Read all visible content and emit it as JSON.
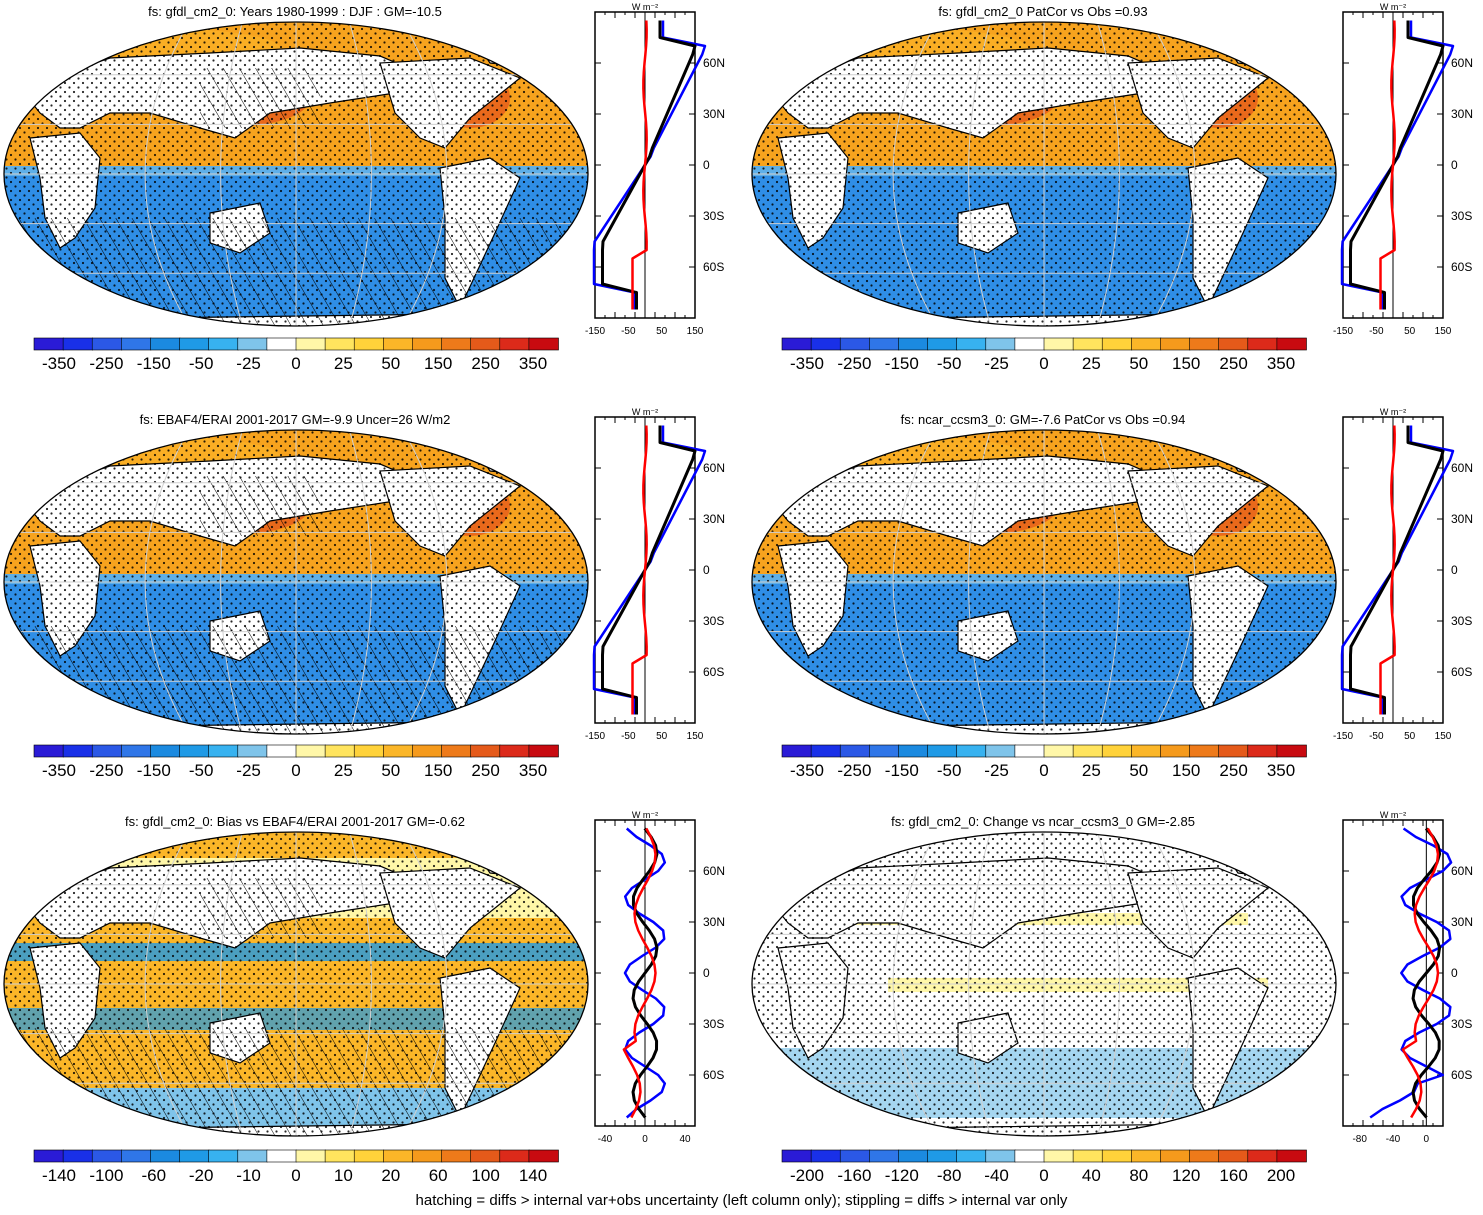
{
  "footnote": "hatching = diffs > internal var+obs uncertainty (left column only); stippling = diffs > internal var only",
  "colors": {
    "neg": [
      "#2a1bd6",
      "#1930e8",
      "#2b58e6",
      "#2f76e8",
      "#1b8ae0",
      "#1f9ae6",
      "#37b2f0",
      "#7fc4ea",
      "#ffffff"
    ],
    "pos": [
      "#ffffff",
      "#fff7a8",
      "#ffe45e",
      "#ffd23a",
      "#fbb628",
      "#f59a1c",
      "#ee7a1a",
      "#e55a1a",
      "#dc2a1a",
      "#c80a10"
    ],
    "ocean_neg": "#2f8ee6",
    "ocean_pos": "#f7a31e",
    "land": "#ffffff",
    "obs_line": "#0000ff",
    "model_line": "#000000",
    "diff_line": "#ff0000"
  },
  "chart_data": [
    {
      "type": "heatmap",
      "title": "fs: gfdl_cm2_0: Years 1980-1999 : DJF : GM=-10.5",
      "colorbar_labels": [
        "-350",
        "-250",
        "-150",
        "-50",
        "-25",
        "0",
        "25",
        "50",
        "150",
        "250",
        "350"
      ],
      "zonal": {
        "xticks": [
          "-150",
          "-50",
          "50",
          "150"
        ],
        "xlim": [
          -150,
          150
        ],
        "lat_ticks": [
          "60N",
          "30N",
          "0",
          "30S",
          "60S"
        ],
        "unit": "W m⁻²"
      }
    },
    {
      "type": "heatmap",
      "title": "fs: gfdl_cm2_0 PatCor vs Obs =0.93",
      "colorbar_labels": [
        "-350",
        "-250",
        "-150",
        "-50",
        "-25",
        "0",
        "25",
        "50",
        "150",
        "250",
        "350"
      ],
      "zonal": {
        "xticks": [
          "-150",
          "-50",
          "50",
          "150"
        ],
        "xlim": [
          -150,
          150
        ],
        "lat_ticks": [
          "60N",
          "30N",
          "0",
          "30S",
          "60S"
        ],
        "unit": "W m⁻²"
      }
    },
    {
      "type": "heatmap",
      "title": "fs: EBAF4/ERAI 2001-2017 GM=-9.9 Uncer=26 W/m2",
      "colorbar_labels": [
        "-350",
        "-250",
        "-150",
        "-50",
        "-25",
        "0",
        "25",
        "50",
        "150",
        "250",
        "350"
      ],
      "zonal": {
        "xticks": [
          "-150",
          "-50",
          "50",
          "150"
        ],
        "xlim": [
          -150,
          150
        ],
        "lat_ticks": [
          "60N",
          "30N",
          "0",
          "30S",
          "60S"
        ],
        "unit": "W m⁻²"
      }
    },
    {
      "type": "heatmap",
      "title": "fs: ncar_ccsm3_0: GM=-7.6 PatCor vs Obs =0.94",
      "colorbar_labels": [
        "-350",
        "-250",
        "-150",
        "-50",
        "-25",
        "0",
        "25",
        "50",
        "150",
        "250",
        "350"
      ],
      "zonal": {
        "xticks": [
          "-150",
          "-50",
          "50",
          "150"
        ],
        "xlim": [
          -150,
          150
        ],
        "lat_ticks": [
          "60N",
          "30N",
          "0",
          "30S",
          "60S"
        ],
        "unit": "W m⁻²"
      }
    },
    {
      "type": "heatmap",
      "title": "fs: gfdl_cm2_0: Bias vs EBAF4/ERAI 2001-2017 GM=-0.62",
      "colorbar_labels": [
        "-140",
        "-100",
        "-60",
        "-20",
        "-10",
        "0",
        "10",
        "20",
        "60",
        "100",
        "140"
      ],
      "zonal": {
        "xticks": [
          "-40",
          "0",
          "40"
        ],
        "xlim": [
          -50,
          50
        ],
        "lat_ticks": [
          "60N",
          "30N",
          "0",
          "30S",
          "60S"
        ],
        "unit": "W m⁻²"
      }
    },
    {
      "type": "heatmap",
      "title": "fs: gfdl_cm2_0: Change vs ncar_ccsm3_0 GM=-2.85",
      "colorbar_labels": [
        "-200",
        "-160",
        "-120",
        "-80",
        "-40",
        "0",
        "40",
        "80",
        "120",
        "160",
        "200"
      ],
      "zonal": {
        "xticks": [
          "-80",
          "-40",
          "0"
        ],
        "xlim": [
          -100,
          20
        ],
        "lat_ticks": [
          "60N",
          "30N",
          "0",
          "30S",
          "60S"
        ],
        "unit": "W m⁻²"
      }
    }
  ]
}
